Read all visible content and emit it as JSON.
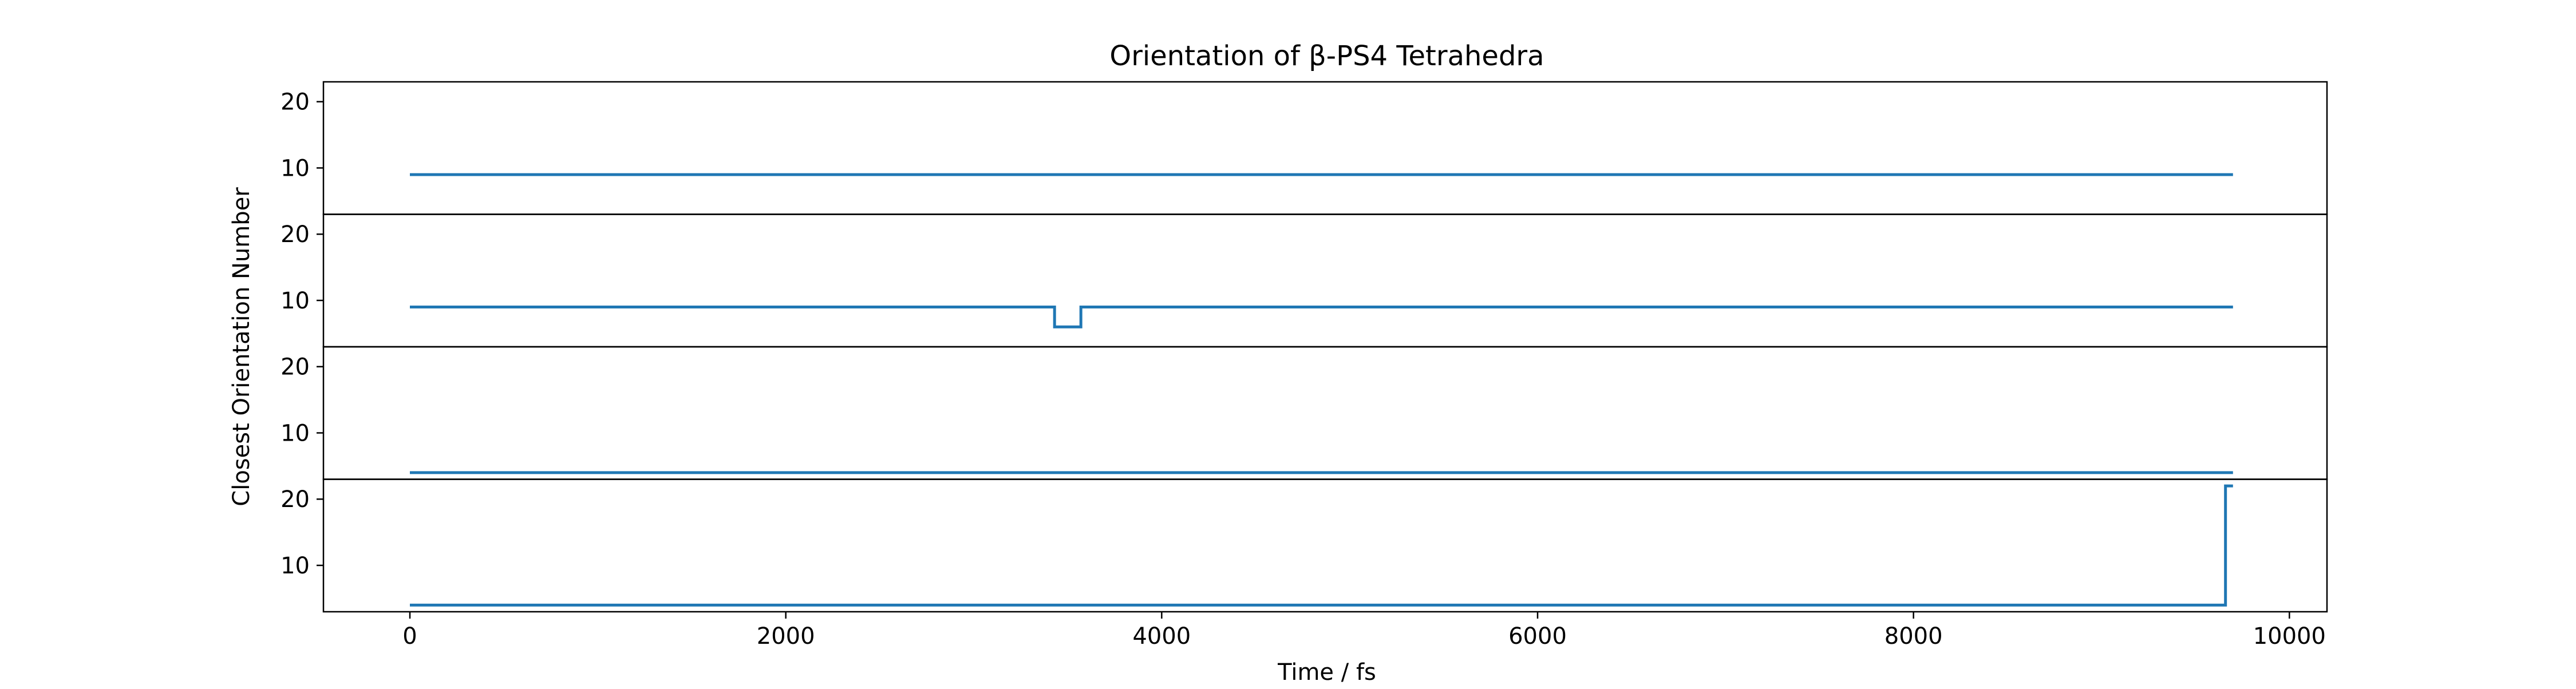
{
  "chart_data": {
    "type": "line",
    "title": "Orientation of β-PS4 Tetrahedra",
    "xlabel": "Time / fs",
    "ylabel": "Closest Orientation Number",
    "xlim": [
      -460,
      10200
    ],
    "x_ticks": [
      0,
      2000,
      4000,
      6000,
      8000,
      10000
    ],
    "x_tick_labels": [
      "0",
      "2000",
      "4000",
      "6000",
      "8000",
      "10000"
    ],
    "ylim": [
      3,
      23
    ],
    "y_ticks": [
      10,
      20
    ],
    "y_tick_labels": [
      "10",
      "20"
    ],
    "grid": false,
    "legend": "none",
    "line_color": "#1f77b4",
    "subplots": [
      {
        "series": [
          {
            "x": [
              0,
              9700
            ],
            "y": [
              9,
              9
            ]
          }
        ]
      },
      {
        "series": [
          {
            "x": [
              0,
              3430,
              3430,
              3570,
              3570,
              9700
            ],
            "y": [
              9,
              9,
              6,
              6,
              9,
              9
            ]
          }
        ]
      },
      {
        "series": [
          {
            "x": [
              0,
              9700
            ],
            "y": [
              4,
              4
            ]
          }
        ]
      },
      {
        "series": [
          {
            "x": [
              0,
              9660,
              9660,
              9700
            ],
            "y": [
              4,
              4,
              22,
              22
            ]
          }
        ]
      }
    ]
  }
}
